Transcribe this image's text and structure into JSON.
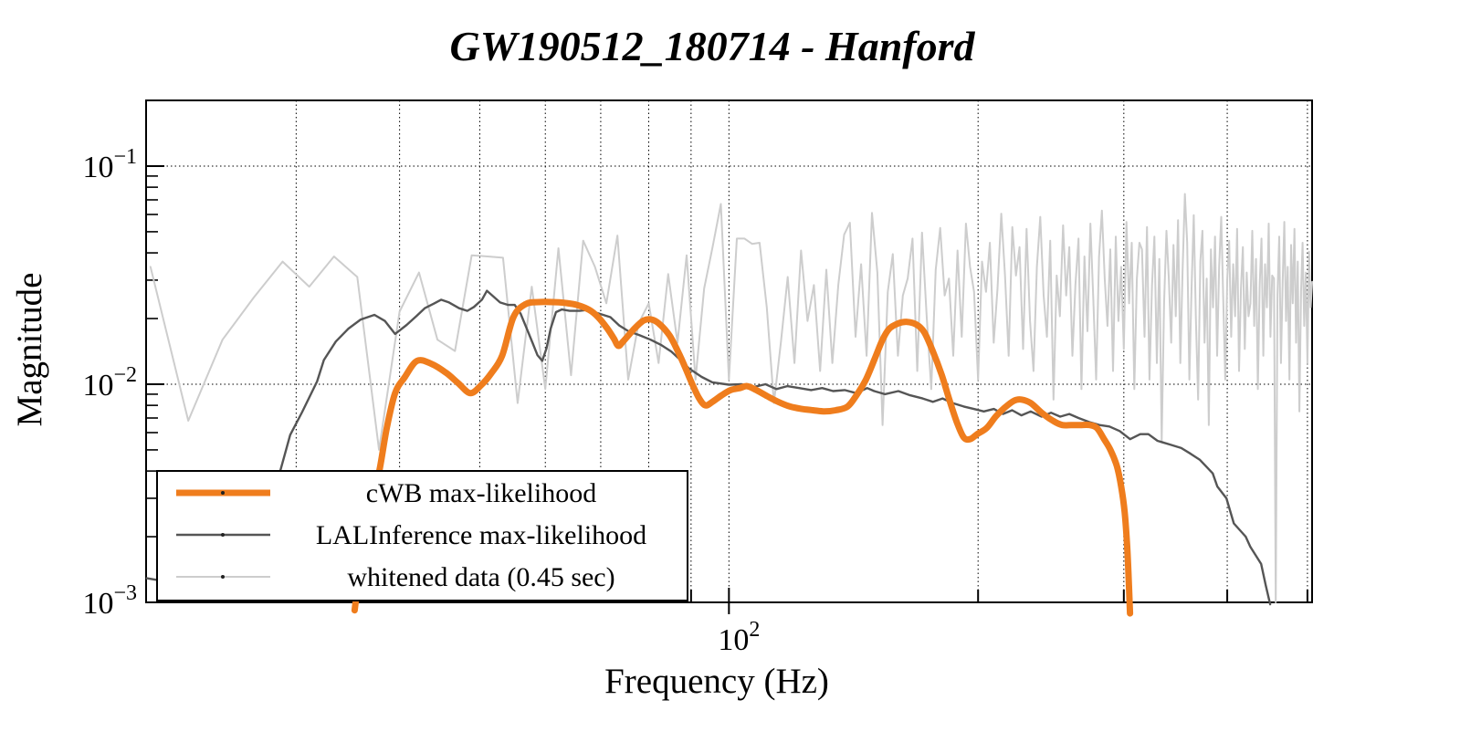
{
  "title": "GW190512_180714 - Hanford",
  "axes": {
    "x_label": "Frequency (Hz)",
    "y_label": "Magnitude",
    "x_scale": "log",
    "y_scale": "log",
    "x_range": [
      19.76,
      506.5
    ],
    "y_range": [
      0.001,
      0.2
    ],
    "x_tick_labels": [
      {
        "base": "10",
        "exponent": "2",
        "value": 100
      }
    ],
    "y_tick_labels": [
      {
        "base": "10",
        "exponent": "−1",
        "value": 0.1
      },
      {
        "base": "10",
        "exponent": "−2",
        "value": 0.01
      },
      {
        "base": "10",
        "exponent": "−3",
        "value": 0.001
      }
    ],
    "x_gridlines": [
      30,
      40,
      50,
      60,
      70,
      80,
      90,
      100,
      200,
      300,
      400,
      500
    ],
    "y_gridlines": [
      0.01,
      0.1
    ],
    "grid": true
  },
  "legend": {
    "items": [
      {
        "label": "cWB max-likelihood",
        "color": "#ef7d1d",
        "line_width": 7
      },
      {
        "label": "LALInference max-likelihood",
        "color": "#555555",
        "line_width": 2.4
      },
      {
        "label": "whitened data (0.45 sec)",
        "color": "#cdcdcd",
        "line_width": 2
      }
    ]
  },
  "colors": {
    "cwb": "#ef7d1d",
    "lalinference": "#555555",
    "whitened": "#cdcdcd",
    "frame": "#000000",
    "grid": "#000000",
    "background": "#ffffff"
  },
  "chart_data": {
    "type": "line",
    "title": "GW190512_180714 - Hanford",
    "xlabel": "Frequency (Hz)",
    "ylabel": "Magnitude",
    "x_scale": "log",
    "y_scale": "log",
    "xlim": [
      19.76,
      506.5
    ],
    "ylim": [
      0.001,
      0.2
    ],
    "grid": true,
    "legend_position": "bottom-left",
    "series": [
      {
        "name": "cWB max-likelihood",
        "color": "#ef7d1d",
        "smooth": true,
        "points": [
          [
            35.3,
            0.00092
          ],
          [
            36.1,
            0.0018
          ],
          [
            37.1,
            0.0031
          ],
          [
            37.8,
            0.004
          ],
          [
            38.6,
            0.0063
          ],
          [
            39.5,
            0.0091
          ],
          [
            40.6,
            0.0108
          ],
          [
            42,
            0.0128
          ],
          [
            43.7,
            0.0124
          ],
          [
            45.5,
            0.0113
          ],
          [
            47.1,
            0.0101
          ],
          [
            48.7,
            0.0091
          ],
          [
            50.2,
            0.0099
          ],
          [
            51.6,
            0.0112
          ],
          [
            53.2,
            0.0135
          ],
          [
            54.9,
            0.0203
          ],
          [
            56.8,
            0.0233
          ],
          [
            58.9,
            0.0238
          ],
          [
            61.2,
            0.0238
          ],
          [
            63.3,
            0.0236
          ],
          [
            65.5,
            0.0231
          ],
          [
            67.8,
            0.0219
          ],
          [
            69.5,
            0.0203
          ],
          [
            71.3,
            0.018
          ],
          [
            72.6,
            0.0162
          ],
          [
            73.5,
            0.015
          ],
          [
            74.5,
            0.0157
          ],
          [
            76.9,
            0.018
          ],
          [
            78.9,
            0.0196
          ],
          [
            80.6,
            0.0198
          ],
          [
            82.4,
            0.0189
          ],
          [
            84.8,
            0.0167
          ],
          [
            86.8,
            0.0141
          ],
          [
            88.5,
            0.012
          ],
          [
            90.1,
            0.0102
          ],
          [
            91.9,
            0.0087
          ],
          [
            93.6,
            0.008
          ],
          [
            95.5,
            0.0083
          ],
          [
            98,
            0.0089
          ],
          [
            100.5,
            0.0094
          ],
          [
            103.1,
            0.0096
          ],
          [
            105.2,
            0.0098
          ],
          [
            107.9,
            0.0094
          ],
          [
            111.3,
            0.0088
          ],
          [
            114.7,
            0.0083
          ],
          [
            118.5,
            0.0079
          ],
          [
            122.5,
            0.0077
          ],
          [
            126.3,
            0.0076
          ],
          [
            130.5,
            0.0075
          ],
          [
            134.6,
            0.0076
          ],
          [
            139.1,
            0.0079
          ],
          [
            142.6,
            0.0089
          ],
          [
            146.2,
            0.0104
          ],
          [
            149.8,
            0.0129
          ],
          [
            153.2,
            0.0159
          ],
          [
            156.3,
            0.018
          ],
          [
            160.2,
            0.019
          ],
          [
            164.2,
            0.0193
          ],
          [
            168.3,
            0.0188
          ],
          [
            172.2,
            0.0173
          ],
          [
            176.4,
            0.0141
          ],
          [
            180.8,
            0.011
          ],
          [
            184.8,
            0.0084
          ],
          [
            188.8,
            0.0066
          ],
          [
            192.2,
            0.0057
          ],
          [
            195.6,
            0.0056
          ],
          [
            199.5,
            0.0059
          ],
          [
            204.9,
            0.0063
          ],
          [
            210,
            0.0071
          ],
          [
            215.3,
            0.0078
          ],
          [
            221,
            0.0084
          ],
          [
            225.6,
            0.0085
          ],
          [
            231.5,
            0.0082
          ],
          [
            238.7,
            0.0074
          ],
          [
            246.3,
            0.0068
          ],
          [
            252.8,
            0.0065
          ],
          [
            259.1,
            0.0065
          ],
          [
            265.7,
            0.0065
          ],
          [
            272.6,
            0.0065
          ],
          [
            278.3,
            0.0063
          ],
          [
            284,
            0.0056
          ],
          [
            289,
            0.005
          ],
          [
            294.3,
            0.0042
          ],
          [
            297.8,
            0.0034
          ],
          [
            300.7,
            0.0026
          ],
          [
            302.8,
            0.0018
          ],
          [
            304.3,
            0.0012
          ],
          [
            305.2,
            0.00089
          ]
        ]
      },
      {
        "name": "LALInference max-likelihood",
        "color": "#555555",
        "smooth": false,
        "points": [
          [
            19.8,
            0.00129
          ],
          [
            21.9,
            0.00121
          ],
          [
            23.9,
            0.00119
          ],
          [
            25.6,
            0.00134
          ],
          [
            27.2,
            0.00171
          ],
          [
            28.2,
            0.00264
          ],
          [
            28.7,
            0.004
          ],
          [
            29.5,
            0.00585
          ],
          [
            30.5,
            0.00745
          ],
          [
            31.8,
            0.0103
          ],
          [
            32.4,
            0.0129
          ],
          [
            33.5,
            0.0157
          ],
          [
            34.7,
            0.018
          ],
          [
            35.9,
            0.0198
          ],
          [
            37.3,
            0.0208
          ],
          [
            38.4,
            0.0195
          ],
          [
            39.5,
            0.017
          ],
          [
            40.8,
            0.0187
          ],
          [
            41.9,
            0.0205
          ],
          [
            42.9,
            0.0223
          ],
          [
            44,
            0.0234
          ],
          [
            44.9,
            0.0244
          ],
          [
            45.9,
            0.0237
          ],
          [
            47.2,
            0.0223
          ],
          [
            48.3,
            0.0217
          ],
          [
            49.2,
            0.0226
          ],
          [
            50.3,
            0.0244
          ],
          [
            51,
            0.0268
          ],
          [
            51.9,
            0.0253
          ],
          [
            52.9,
            0.0237
          ],
          [
            54.1,
            0.0231
          ],
          [
            55.1,
            0.0231
          ],
          [
            56,
            0.0211
          ],
          [
            56.9,
            0.0182
          ],
          [
            57.9,
            0.0155
          ],
          [
            58.7,
            0.0136
          ],
          [
            59.5,
            0.0128
          ],
          [
            60.2,
            0.0146
          ],
          [
            60.9,
            0.018
          ],
          [
            61.8,
            0.0214
          ],
          [
            62.8,
            0.022
          ],
          [
            64.2,
            0.0217
          ],
          [
            66,
            0.0217
          ],
          [
            67.4,
            0.0219
          ],
          [
            68.5,
            0.0215
          ],
          [
            71.9,
            0.0203
          ],
          [
            73.7,
            0.0186
          ],
          [
            75.6,
            0.0175
          ],
          [
            77.9,
            0.0168
          ],
          [
            80.4,
            0.016
          ],
          [
            82.9,
            0.0151
          ],
          [
            85.2,
            0.0141
          ],
          [
            87.4,
            0.0129
          ],
          [
            89.5,
            0.0118
          ],
          [
            92.7,
            0.0108
          ],
          [
            95.5,
            0.0102
          ],
          [
            100,
            0.00995
          ],
          [
            103.6,
            0.01
          ],
          [
            107.1,
            0.0097
          ],
          [
            110.7,
            0.01
          ],
          [
            114.1,
            0.0095
          ],
          [
            117.6,
            0.0098
          ],
          [
            121.6,
            0.0096
          ],
          [
            125.7,
            0.0094
          ],
          [
            129.6,
            0.0096
          ],
          [
            133.6,
            0.0093
          ],
          [
            138,
            0.0094
          ],
          [
            142.6,
            0.0091
          ],
          [
            146.9,
            0.0096
          ],
          [
            149.8,
            0.0093
          ],
          [
            154.3,
            0.009
          ],
          [
            160.2,
            0.0093
          ],
          [
            165.5,
            0.0089
          ],
          [
            171.4,
            0.0086
          ],
          [
            176.4,
            0.0083
          ],
          [
            181.2,
            0.0086
          ],
          [
            186.3,
            0.0082
          ],
          [
            192.2,
            0.0079
          ],
          [
            197.6,
            0.0077
          ],
          [
            203.2,
            0.0075
          ],
          [
            209,
            0.0077
          ],
          [
            214.3,
            0.0073
          ],
          [
            219.9,
            0.0076
          ],
          [
            225.6,
            0.0072
          ],
          [
            231.5,
            0.0075
          ],
          [
            238.7,
            0.0071
          ],
          [
            245,
            0.0074
          ],
          [
            251.3,
            0.0071
          ],
          [
            257.8,
            0.0073
          ],
          [
            264.5,
            0.007
          ],
          [
            272.6,
            0.0067
          ],
          [
            280.3,
            0.0065
          ],
          [
            288.2,
            0.0064
          ],
          [
            296.6,
            0.0061
          ],
          [
            305.3,
            0.0056
          ],
          [
            314,
            0.0059
          ],
          [
            321.2,
            0.0059
          ],
          [
            329.5,
            0.0055
          ],
          [
            340.5,
            0.0053
          ],
          [
            352,
            0.0051
          ],
          [
            361.3,
            0.0048
          ],
          [
            370.8,
            0.0045
          ],
          [
            384.2,
            0.0039
          ],
          [
            389.1,
            0.0034
          ],
          [
            399.1,
            0.003
          ],
          [
            407.4,
            0.0023
          ],
          [
            421.1,
            0.002
          ],
          [
            426.5,
            0.0018
          ],
          [
            439.6,
            0.0015
          ],
          [
            445.2,
            0.0012
          ],
          [
            450.8,
            0.00098
          ]
        ]
      },
      {
        "name": "whitened data (0.45 sec)",
        "color": "#cdcdcd",
        "smooth": false,
        "f_start": 20,
        "f_step": 2.2222,
        "values": [
          0.0345,
          0.0068,
          0.016,
          0.025,
          0.0365,
          0.028,
          0.0385,
          0.031,
          0.005,
          0.0215,
          0.0325,
          0.016,
          0.0142,
          0.039,
          0.0385,
          0.038,
          0.0082,
          0.028,
          0.0095,
          0.042,
          0.011,
          0.0455,
          0.0345,
          0.0235,
          0.048,
          0.0105,
          0.019,
          0.0235,
          0.0125,
          0.032,
          0.0155,
          0.039,
          0.0105,
          0.0275,
          0.0425,
          0.067,
          0.0105,
          0.0465,
          0.0465,
          0.044,
          0.0445,
          0.0225,
          0.0082,
          0.0155,
          0.031,
          0.0125,
          0.041,
          0.0195,
          0.0285,
          0.0115,
          0.0335,
          0.0125,
          0.0285,
          0.0485,
          0.055,
          0.0165,
          0.0355,
          0.0135,
          0.061,
          0.0325,
          0.0065,
          0.0265,
          0.0395,
          0.0135,
          0.0255,
          0.0305,
          0.0465,
          0.0115,
          0.0495,
          0.0205,
          0.0095,
          0.0335,
          0.052,
          0.0255,
          0.0305,
          0.0135,
          0.041,
          0.0165,
          0.0545,
          0.0345,
          0.0265,
          0.0105,
          0.0365,
          0.0265,
          0.0445,
          0.0155,
          0.0275,
          0.0605,
          0.0315,
          0.0135,
          0.0525,
          0.0315,
          0.0425,
          0.0145,
          0.0515,
          0.0195,
          0.0115,
          0.0345,
          0.0585,
          0.0255,
          0.0165,
          0.0455,
          0.0085,
          0.0315,
          0.0205,
          0.0535,
          0.0255,
          0.0425,
          0.0135,
          0.0285,
          0.0465,
          0.0095,
          0.0385,
          0.0175,
          0.0545,
          0.0245,
          0.0105,
          0.0385,
          0.0625,
          0.0305,
          0.0185,
          0.0415,
          0.0115,
          0.0475,
          0.0195,
          0.0345,
          0.0145,
          0.0555,
          0.0235,
          0.0445,
          0.0095,
          0.0305,
          0.0445,
          0.0415,
          0.0165,
          0.0525,
          0.0105,
          0.0285,
          0.0475,
          0.0125,
          0.0375,
          0.0055,
          0.0235,
          0.0505,
          0.0305,
          0.0155,
          0.0435,
          0.0205,
          0.0565,
          0.0125,
          0.0335,
          0.0745,
          0.0445,
          0.0105,
          0.0275,
          0.0595,
          0.0195,
          0.0085,
          0.0365,
          0.0505,
          0.0155,
          0.0305,
          0.0065,
          0.0415,
          0.0225,
          0.0475,
          0.0135,
          0.0345,
          0.0585,
          0.0245,
          0.0105,
          0.0305,
          0.0455,
          0.0165,
          0.0355,
          0.0205,
          0.0515,
          0.0115,
          0.0275,
          0.0425,
          0.0145,
          0.0325,
          0.0205,
          0.0235,
          0.0505,
          0.0185,
          0.0375,
          0.0095,
          0.0285,
          0.0465,
          0.0135,
          0.0355,
          0.0225,
          0.0545,
          0.0165,
          0.0315,
          0.0305,
          0.001,
          0.0255,
          0.0475,
          0.0125,
          0.0295,
          0.0555,
          0.0195,
          0.0345,
          0.0105,
          0.0435,
          0.0235,
          0.0515,
          0.0155,
          0.0365,
          0.0075,
          0.0265,
          0.0445,
          0.0185,
          0.0325,
          0.0125,
          0.0405,
          0.0225,
          0.0295
        ]
      }
    ]
  }
}
